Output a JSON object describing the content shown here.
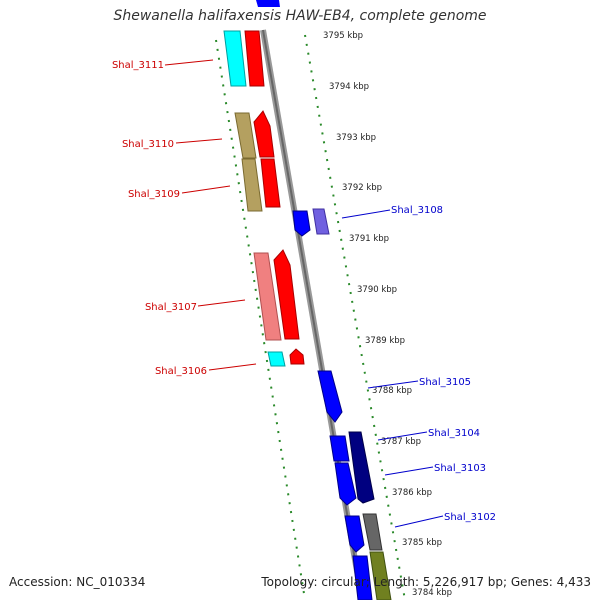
{
  "title": "Shewanella halifaxensis HAW-EB4, complete genome",
  "footer": {
    "accession": "Accession: NC_010334",
    "summary": "Topology: circular; Length: 5,226,917 bp; Genes: 4,433"
  },
  "ticks": [
    "3795 kbp",
    "3794 kbp",
    "3793 kbp",
    "3792 kbp",
    "3791 kbp",
    "3790 kbp",
    "3789 kbp",
    "3788 kbp",
    "3787 kbp",
    "3786 kbp",
    "3785 kbp",
    "3784 kbp"
  ],
  "left_genes": [
    "Shal_3111",
    "Shal_3110",
    "Shal_3109",
    "Shal_3107",
    "Shal_3106"
  ],
  "right_genes": [
    "Shal_3108",
    "Shal_3105",
    "Shal_3104",
    "Shal_3103",
    "Shal_3102"
  ],
  "colors": {
    "forward_strand": "#ff0000",
    "reverse_strand": "#0000ff",
    "left_label": "#cc0000",
    "right_label": "#0000cc",
    "backbone": "#888888",
    "ruler": "#2a8a2a"
  }
}
